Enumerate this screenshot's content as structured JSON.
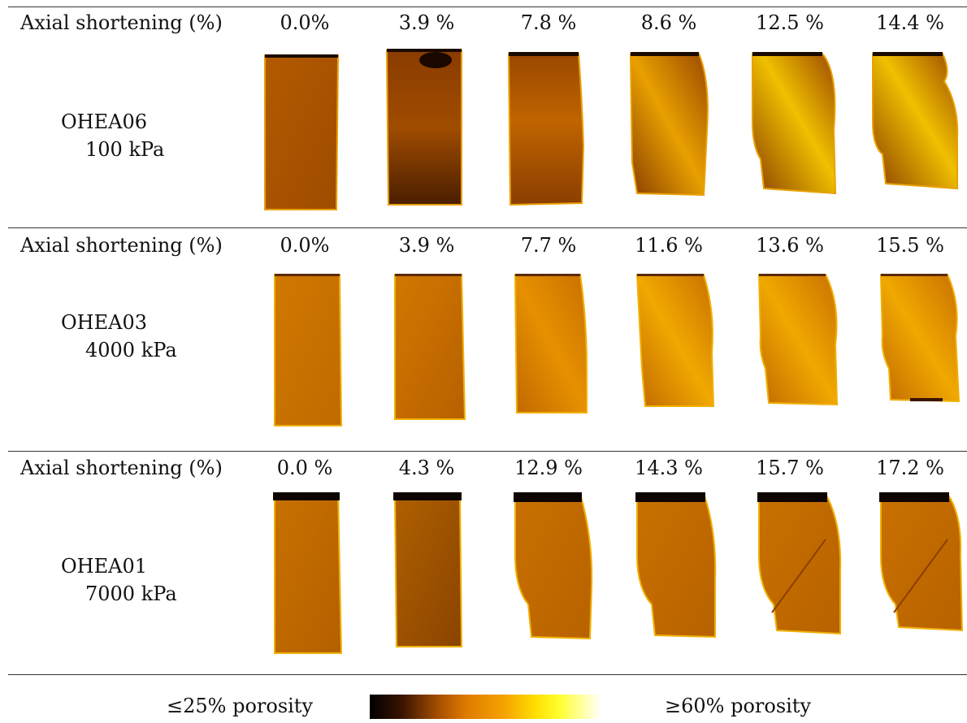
{
  "panels": [
    {
      "row_label": "Axial shortening (%)",
      "specimen": "OHEA06",
      "pressure": "100 kPa",
      "shortenings": [
        "0.0%",
        "3.9 %",
        "7.8 %",
        "8.6 %",
        "12.5 %",
        "14.4 %"
      ]
    },
    {
      "row_label": "Axial shortening (%)",
      "specimen": "OHEA03",
      "pressure": "4000 kPa",
      "shortenings": [
        "0.0%",
        "3.9 %",
        "7.7 %",
        "11.6 %",
        "13.6 %",
        "15.5 %"
      ]
    },
    {
      "row_label": "Axial shortening (%)",
      "specimen": "OHEA01",
      "pressure": "7000 kPa",
      "shortenings": [
        "0.0 %",
        "4.3 %",
        "12.9 %",
        "14.3 %",
        "15.7 %",
        "17.2 %"
      ]
    }
  ],
  "legend": {
    "low_label": "≤25% porosity",
    "high_label": "≥60% porosity"
  }
}
